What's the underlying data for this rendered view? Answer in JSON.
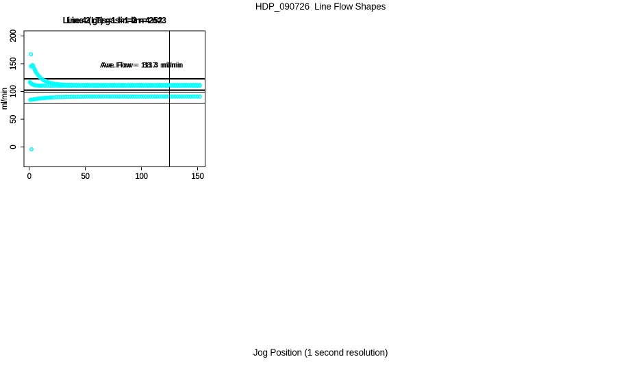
{
  "page": {
    "title": "HDP_090726  Line Flow Shapes",
    "xlabel": "Jog Position (1 second resolution)",
    "background": "#FFFFFF"
  },
  "colors": {
    "points": "#00FFFF",
    "axis": "#000000",
    "text": "#000000"
  },
  "chart_data": [
    {
      "type": "scatter",
      "title": "Line 2 gas=1 lin=2 n=252",
      "ylabel": "ml/min",
      "annotation": "Ave. Flow =  111.4  ml/min",
      "annotation_pos": {
        "x": 100,
        "y": 148
      },
      "ave_flow": 111.4,
      "n": 252,
      "xlim": [
        -4.7,
        156.6
      ],
      "ylim": [
        -35.3,
        209.2
      ],
      "xticks": [
        0,
        50,
        100,
        150
      ],
      "yticks": [
        0,
        50,
        100,
        150,
        200
      ],
      "vline_x": 125,
      "hlines": [
        101.4,
        121.4
      ],
      "grid": false,
      "x": [
        0.6,
        1.2,
        1.8,
        2.4,
        3,
        3.6,
        4.2,
        4.8,
        5.4,
        6,
        7,
        8,
        9,
        10,
        11,
        12,
        14,
        16,
        18,
        20,
        22,
        24,
        26,
        28,
        30,
        32,
        34,
        36,
        38,
        40,
        42,
        44,
        46,
        48,
        50,
        52,
        54,
        56,
        58,
        60,
        62,
        64,
        66,
        68,
        70,
        72,
        74,
        76,
        78,
        80,
        82,
        84,
        86,
        88,
        90,
        92,
        94,
        96,
        98,
        100,
        102,
        104,
        106,
        108,
        110,
        112,
        114,
        116,
        118,
        120,
        122,
        124,
        126,
        128,
        130,
        132,
        134,
        136,
        138,
        140,
        142,
        144,
        146,
        148,
        150,
        152
      ],
      "y": [
        116.7,
        115.4,
        114.3,
        113.5,
        112.8,
        112.3,
        111.9,
        111.6,
        111.3,
        111.1,
        110.9,
        110.7,
        110.6,
        110.5,
        110.5,
        110.5,
        110.4,
        110.5,
        110.3,
        110.4,
        110.4,
        110.5,
        110.3,
        110.4,
        110.4,
        110.5,
        110.3,
        110.4,
        110.4,
        110.5,
        110.3,
        110.4,
        110.4,
        110.5,
        110.3,
        110.4,
        110.4,
        110.5,
        110.3,
        110.4,
        110.4,
        110.5,
        110.3,
        110.4,
        110.4,
        110.5,
        110.3,
        110.4,
        110.4,
        110.5,
        110.3,
        110.4,
        110.4,
        110.5,
        110.3,
        110.4,
        110.4,
        110.5,
        110.3,
        110.4,
        110.4,
        110.5,
        110.3,
        110.4,
        110.4,
        110.5,
        110.3,
        110.4,
        110.4,
        110.5,
        110.3,
        110.4,
        110.4,
        110.5,
        110.3,
        110.4,
        110.4,
        110.5,
        110.3,
        110.4,
        110.4,
        110.5,
        110.3,
        110.4,
        110.4,
        110.5
      ]
    },
    {
      "type": "scatter",
      "title": "Line 3 gas=1 lin=3 n=252",
      "ylabel": "ml/min",
      "annotation": "Ave. Flow =  88.7  ml/min",
      "annotation_pos": {
        "x": 100,
        "y": 148
      },
      "ave_flow": 88.7,
      "n": 252,
      "xlim": [
        -4.7,
        156.6
      ],
      "ylim": [
        -35.3,
        209.2
      ],
      "xticks": [
        0,
        50,
        100,
        150
      ],
      "yticks": [
        0,
        50,
        100,
        150,
        200
      ],
      "vline_x": 125,
      "hlines": [
        78.7,
        98.7
      ],
      "grid": false,
      "x": [
        1.5,
        1,
        2,
        3,
        4,
        5,
        6,
        7,
        8,
        9,
        10,
        11,
        12,
        13,
        14,
        15,
        16,
        17,
        18,
        19,
        20,
        22,
        24,
        26,
        28,
        30,
        32,
        34,
        36,
        38,
        40,
        42,
        44,
        46,
        48,
        50,
        52,
        54,
        56,
        58,
        60,
        62,
        64,
        66,
        68,
        70,
        72,
        74,
        76,
        78,
        80,
        82,
        84,
        86,
        88,
        90,
        92,
        94,
        96,
        98,
        100,
        102,
        104,
        106,
        108,
        110,
        112,
        114,
        116,
        118,
        120,
        122,
        124,
        126,
        128,
        130,
        132,
        134,
        136,
        138,
        140,
        142,
        144,
        146,
        148,
        150,
        152
      ],
      "y": [
        167,
        84.9,
        85.3,
        85.7,
        86,
        86.3,
        86.6,
        86.9,
        87.2,
        87.4,
        87.7,
        87.9,
        88.1,
        88.3,
        88.4,
        88.6,
        88.8,
        88.9,
        89,
        89.2,
        89.3,
        89.5,
        89.7,
        89.9,
        90,
        90.1,
        90.2,
        90.3,
        90.4,
        90.5,
        90.5,
        90.6,
        90.6,
        90.7,
        90.7,
        90.8,
        90.9,
        91,
        90.8,
        90.9,
        90.9,
        91,
        90.8,
        90.9,
        90.9,
        91,
        90.8,
        90.9,
        90.9,
        91,
        90.8,
        90.9,
        90.9,
        91,
        90.8,
        90.9,
        90.9,
        91,
        90.8,
        90.9,
        90.9,
        91,
        90.8,
        90.9,
        90.9,
        91,
        90.8,
        90.9,
        90.9,
        91,
        90.8,
        90.9,
        90.9,
        91,
        90.8,
        90.9,
        90.9,
        91,
        90.8,
        90.9,
        90.9,
        91,
        90.8,
        90.9,
        90.9,
        91,
        90.8
      ]
    },
    {
      "type": "scatter",
      "title": "Line 4 (LT) gas=1 lin=4 n=3",
      "ylabel": "ml/min",
      "annotation": "Ave. Flow =  113.3  ml/min",
      "annotation_pos": {
        "x": 100,
        "y": 148
      },
      "ave_flow": 113.3,
      "n": 3,
      "xlim": [
        -4.7,
        156.6
      ],
      "ylim": [
        -35.3,
        209.2
      ],
      "xticks": [
        0,
        50,
        100,
        150
      ],
      "yticks": [
        0,
        50,
        100,
        150,
        200
      ],
      "vline_x": 125,
      "hlines": [
        103.3,
        123.3
      ],
      "grid": false,
      "x": [
        2,
        1.5,
        2.5,
        3,
        3.5,
        4,
        4.5,
        5,
        5.5,
        6,
        7,
        8,
        9,
        10,
        11,
        12,
        13,
        14,
        15,
        16,
        17,
        18,
        19,
        20,
        21,
        22,
        23,
        24,
        25,
        26,
        27,
        28,
        29,
        30,
        32,
        34,
        36,
        38,
        40,
        42,
        44,
        46,
        48,
        50,
        52,
        54,
        56,
        58,
        60,
        62,
        64,
        66,
        68,
        70,
        72,
        74,
        76,
        78,
        80,
        82,
        84,
        86,
        88,
        90,
        92,
        94,
        96,
        98,
        100,
        102,
        104,
        106,
        108,
        110,
        112,
        114,
        116,
        118,
        120,
        122,
        124,
        126,
        128,
        130,
        132,
        134,
        136,
        138,
        140,
        142,
        144,
        146,
        148,
        150,
        152
      ],
      "y": [
        -4,
        145.5,
        146.8,
        147.6,
        145.9,
        142.8,
        141,
        138.7,
        137,
        135.1,
        131.9,
        129.2,
        126.9,
        124.8,
        123.1,
        121.6,
        120.2,
        119.1,
        118.1,
        117.2,
        116.5,
        115.8,
        115.3,
        114.8,
        114.3,
        114,
        113.6,
        113.4,
        113.1,
        112.9,
        112.7,
        112.6,
        112.5,
        112.4,
        112.2,
        112.1,
        112,
        111.9,
        111.9,
        111.8,
        111.9,
        111.7,
        111.8,
        111.8,
        111.9,
        111.7,
        111.8,
        111.8,
        111.9,
        111.7,
        111.8,
        111.8,
        111.9,
        111.7,
        111.8,
        111.8,
        111.9,
        111.7,
        111.8,
        111.8,
        111.9,
        111.7,
        111.8,
        111.8,
        111.9,
        111.7,
        111.8,
        111.8,
        111.9,
        111.7,
        111.8,
        111.8,
        111.9,
        111.7,
        111.8,
        111.8,
        111.9,
        111.7,
        111.8,
        111.8,
        111.9,
        111.7,
        111.8,
        111.8,
        111.9,
        111.7,
        111.8,
        111.8,
        111.9,
        111.7,
        111.8,
        111.8,
        111.9,
        111.7,
        111.8
      ]
    }
  ]
}
